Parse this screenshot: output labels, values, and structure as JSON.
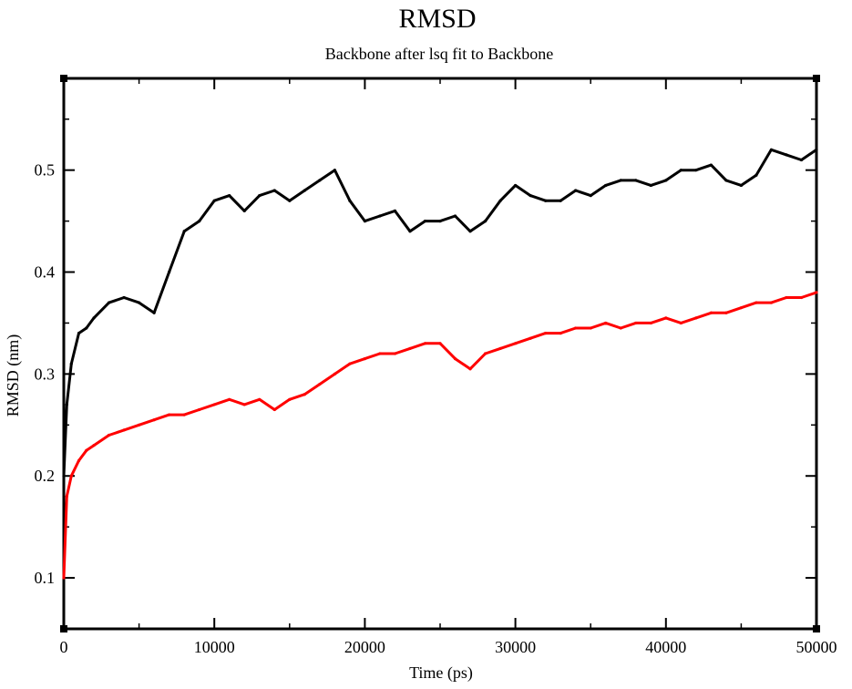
{
  "chart_data": {
    "type": "line",
    "title": "RMSD",
    "subtitle": "Backbone after lsq fit to Backbone",
    "xlabel": "Time (ps)",
    "ylabel": "RMSD (nm)",
    "xlim": [
      0,
      50000
    ],
    "ylim": [
      0.05,
      0.59
    ],
    "x_ticks": [
      0,
      10000,
      20000,
      30000,
      40000,
      50000
    ],
    "x_tick_labels": [
      "0",
      "10000",
      "20000",
      "30000",
      "40000",
      "50000"
    ],
    "y_ticks": [
      0.1,
      0.2,
      0.3,
      0.4,
      0.5
    ],
    "y_tick_labels": [
      "0.1",
      "0.2",
      "0.3",
      "0.4",
      "0.5"
    ],
    "grid": false,
    "legend": "none",
    "series": [
      {
        "color": "#000000",
        "x": [
          0,
          200,
          500,
          1000,
          1500,
          2000,
          3000,
          4000,
          5000,
          6000,
          7000,
          8000,
          9000,
          10000,
          11000,
          12000,
          13000,
          14000,
          15000,
          16000,
          17000,
          18000,
          19000,
          20000,
          21000,
          22000,
          23000,
          24000,
          25000,
          26000,
          27000,
          28000,
          29000,
          30000,
          31000,
          32000,
          33000,
          34000,
          35000,
          36000,
          37000,
          38000,
          39000,
          40000,
          41000,
          42000,
          43000,
          44000,
          45000,
          46000,
          47000,
          48000,
          49000,
          50000
        ],
        "values": [
          0.2,
          0.27,
          0.31,
          0.34,
          0.345,
          0.355,
          0.37,
          0.375,
          0.37,
          0.36,
          0.4,
          0.44,
          0.45,
          0.47,
          0.475,
          0.46,
          0.475,
          0.48,
          0.47,
          0.48,
          0.49,
          0.5,
          0.47,
          0.45,
          0.455,
          0.46,
          0.44,
          0.45,
          0.45,
          0.455,
          0.44,
          0.45,
          0.47,
          0.485,
          0.475,
          0.47,
          0.47,
          0.48,
          0.475,
          0.485,
          0.49,
          0.49,
          0.485,
          0.49,
          0.5,
          0.5,
          0.505,
          0.49,
          0.485,
          0.495,
          0.52,
          0.515,
          0.51,
          0.52
        ]
      },
      {
        "color": "#ff0000",
        "x": [
          0,
          200,
          500,
          1000,
          1500,
          2000,
          3000,
          4000,
          5000,
          6000,
          7000,
          8000,
          9000,
          10000,
          11000,
          12000,
          13000,
          14000,
          15000,
          16000,
          17000,
          18000,
          19000,
          20000,
          21000,
          22000,
          23000,
          24000,
          25000,
          26000,
          27000,
          28000,
          29000,
          30000,
          31000,
          32000,
          33000,
          34000,
          35000,
          36000,
          37000,
          38000,
          39000,
          40000,
          41000,
          42000,
          43000,
          44000,
          45000,
          46000,
          47000,
          48000,
          49000,
          50000
        ],
        "values": [
          0.1,
          0.18,
          0.2,
          0.215,
          0.225,
          0.23,
          0.24,
          0.245,
          0.25,
          0.255,
          0.26,
          0.26,
          0.265,
          0.27,
          0.275,
          0.27,
          0.275,
          0.265,
          0.275,
          0.28,
          0.29,
          0.3,
          0.31,
          0.315,
          0.32,
          0.32,
          0.325,
          0.33,
          0.33,
          0.315,
          0.305,
          0.32,
          0.325,
          0.33,
          0.335,
          0.34,
          0.34,
          0.345,
          0.345,
          0.35,
          0.345,
          0.35,
          0.35,
          0.355,
          0.35,
          0.355,
          0.36,
          0.36,
          0.365,
          0.37,
          0.37,
          0.375,
          0.375,
          0.38
        ]
      }
    ]
  }
}
